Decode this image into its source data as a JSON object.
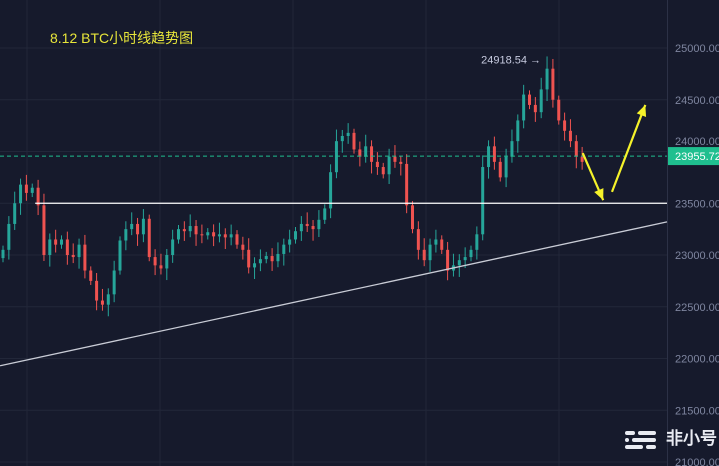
{
  "chart_data": {
    "type": "candlestick",
    "title": "8.12  BTC小时线趋势图",
    "ylim": [
      21000,
      25100
    ],
    "y_ticks": [
      "25000.00",
      "24500.00",
      "24000.00",
      "23500.00",
      "23000.00",
      "22500.00",
      "22000.00",
      "21500.00",
      "21000.00"
    ],
    "grid": true,
    "colors": {
      "up": "#26a69a",
      "down": "#ef5350",
      "background": "#161a2c",
      "current_price": "#1fbf8f",
      "arrow": "#f5f22a",
      "level": "#ffffff",
      "trendline": "#c9ccd6"
    },
    "close": [
      23050,
      23300,
      23500,
      23680,
      23600,
      23650,
      23480,
      23000,
      23150,
      23100,
      23150,
      23000,
      22980,
      23100,
      22850,
      22750,
      22560,
      22520,
      22620,
      22850,
      23140,
      23250,
      23300,
      23200,
      23350,
      22980,
      22900,
      22870,
      23000,
      23150,
      23250,
      23230,
      23280,
      23200,
      23190,
      23220,
      23180,
      23200,
      23170,
      23200,
      23100,
      23050,
      22880,
      22920,
      22960,
      22990,
      22940,
      23010,
      23100,
      23150,
      23230,
      23300,
      23280,
      23250,
      23340,
      23450,
      23800,
      24100,
      24150,
      24180,
      24020,
      23950,
      24050,
      23900,
      23850,
      23780,
      23950,
      23900,
      23880,
      23480,
      23250,
      23050,
      22950,
      23100,
      23150,
      23050,
      22850,
      22900,
      22950,
      22980,
      23050,
      23200,
      23850,
      24050,
      23900,
      23750,
      23950,
      24100,
      24300,
      24550,
      24450,
      24380,
      24600,
      24800,
      24500,
      24300,
      24200,
      24100,
      23950,
      23900
    ],
    "max_marker": {
      "candle": 93,
      "value": 24918.54,
      "label": "24918.54 →"
    },
    "current_price": {
      "value": 23955.72,
      "label": "23955.72"
    },
    "horizontal_level": {
      "value": 23500,
      "from_candle": 5.5
    },
    "trendline": {
      "from": [
        -0.5,
        21930
      ],
      "to": [
        113.5,
        23320
      ]
    },
    "arrows": [
      {
        "from": [
          99.1,
          23985
        ],
        "to": [
          102.6,
          23530
        ]
      },
      {
        "from": [
          104.1,
          23610
        ],
        "to": [
          109.8,
          24450
        ]
      }
    ]
  },
  "watermark": {
    "text": "非小号"
  }
}
